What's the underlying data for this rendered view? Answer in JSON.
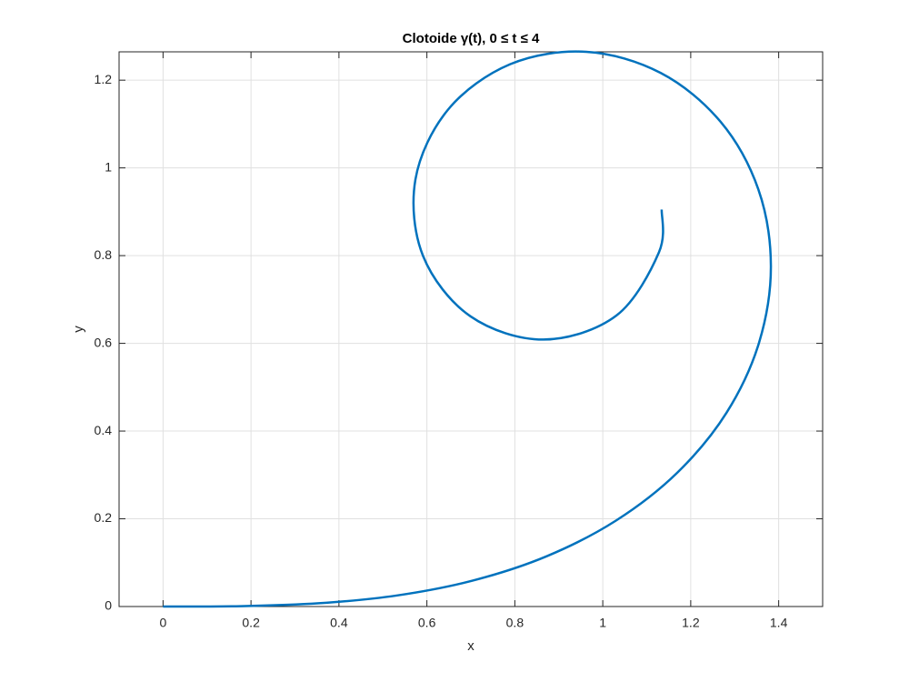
{
  "chart_data": {
    "type": "line",
    "title": "Clotoide γ(t), 0 ≤ t ≤ 4",
    "x_label": "x",
    "y_label": "y",
    "x": [
      0,
      0.1771,
      0.3543,
      0.5307,
      0.7045,
      0.8726,
      1.03,
      1.1693,
      1.2815,
      1.3556,
      1.3823,
      1.3538,
      1.268,
      1.1319,
      0.9626,
      0.7893,
      0.6478,
      0.5739,
      0.5913,
      0.699,
      0.8653,
      1.0309,
      1.1278,
      1.134
    ],
    "series": [
      {
        "color": "#0072bd",
        "values": [
          0,
          0.0009,
          0.0074,
          0.025,
          0.0592,
          0.1147,
          0.1959,
          0.305,
          0.4419,
          0.6023,
          0.7769,
          0.9509,
          1.105,
          1.2164,
          1.2646,
          1.2363,
          1.1324,
          0.9734,
          0.7992,
          0.6617,
          0.6087,
          0.6634,
          0.8077,
          0.905
        ]
      }
    ],
    "xlim": [
      -0.1,
      1.5
    ],
    "ylim": [
      0,
      1.2646
    ],
    "xticks": [
      0,
      0.2,
      0.4,
      0.6,
      0.8,
      1,
      1.2,
      1.4
    ],
    "yticks": [
      0,
      0.2,
      0.4,
      0.6,
      0.8,
      1,
      1.2
    ],
    "grid": true
  }
}
